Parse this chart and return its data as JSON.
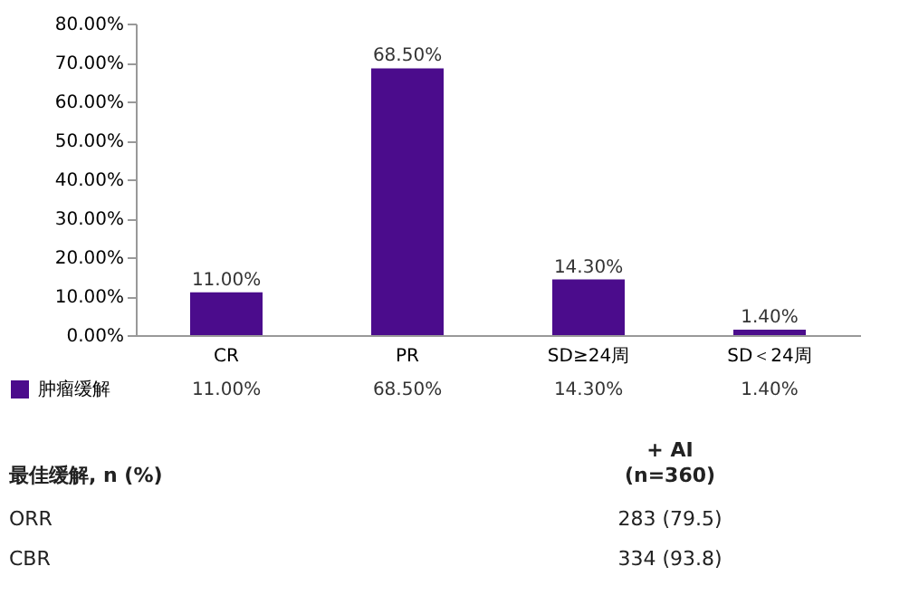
{
  "chart_data": {
    "type": "bar",
    "categories": [
      "CR",
      "PR",
      "SD≥24周",
      "SD＜24周"
    ],
    "series": [
      {
        "name": "肿瘤缓解",
        "color": "#4b0c8c",
        "values": [
          11.0,
          68.5,
          14.3,
          1.4
        ],
        "value_labels": [
          "11.00%",
          "68.50%",
          "14.30%",
          "1.40%"
        ]
      }
    ],
    "ylim": [
      0,
      80
    ],
    "yticks": [
      {
        "value": 0,
        "label": "0.00%"
      },
      {
        "value": 10,
        "label": "10.00%"
      },
      {
        "value": 20,
        "label": "20.00%"
      },
      {
        "value": 30,
        "label": "30.00%"
      },
      {
        "value": 40,
        "label": "40.00%"
      },
      {
        "value": 50,
        "label": "50.00%"
      },
      {
        "value": 60,
        "label": "60.00%"
      },
      {
        "value": 70,
        "label": "70.00%"
      },
      {
        "value": 80,
        "label": "80.00%"
      }
    ],
    "grid": false,
    "legend": "bottom left",
    "annotations": [
      "最佳缓解, n (%)",
      "+ AI",
      "(n=360)",
      "ORR",
      "283 (79.5)",
      "CBR",
      "334 (93.8)"
    ]
  }
}
